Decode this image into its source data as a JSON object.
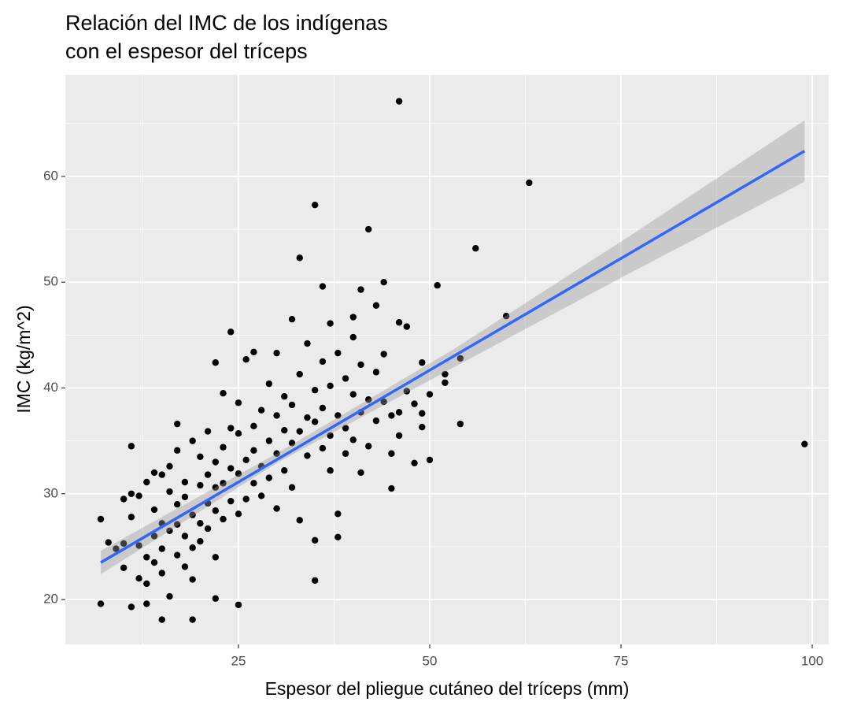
{
  "chart_data": {
    "type": "scatter",
    "title": [
      "Relación del IMC de los indígenas",
      "con el espesor del tríceps"
    ],
    "x_label": "Espesor del pliegue cutáneo del tríceps (mm)",
    "y_label": "IMC (kg/m^2)",
    "xlim": [
      2.37,
      102.16
    ],
    "ylim": [
      15.76,
      69.6
    ],
    "xticks": [
      25,
      50,
      75,
      100
    ],
    "yticks": [
      20,
      30,
      40,
      50,
      60
    ],
    "xminorticks": [
      12.5,
      37.5,
      62.5,
      87.5
    ],
    "yminorticks": [
      25,
      35,
      45,
      55,
      65
    ],
    "grid": true,
    "background": "#ebebeb",
    "point_color": "#000000",
    "points": {
      "x": [
        46,
        63,
        35,
        42,
        56,
        33,
        36,
        44,
        51,
        41,
        60,
        43,
        40,
        32,
        37,
        46,
        24,
        47,
        54,
        49,
        52,
        52,
        99,
        54,
        50,
        50,
        45,
        38,
        35,
        25,
        22,
        15,
        19,
        7,
        11,
        13,
        7,
        11,
        17,
        22,
        8,
        9,
        10,
        10,
        10,
        11,
        11,
        12,
        12,
        12,
        13,
        13,
        13,
        14,
        14,
        14,
        14,
        15,
        15,
        15,
        15,
        16,
        16,
        16,
        16,
        17,
        17,
        17,
        17,
        18,
        18,
        18,
        18,
        19,
        19,
        19,
        19,
        20,
        20,
        20,
        20,
        21,
        21,
        21,
        21,
        22,
        22,
        22,
        22,
        23,
        23,
        23,
        23,
        24,
        24,
        24,
        25,
        25,
        25,
        25,
        26,
        26,
        26,
        27,
        27,
        27,
        27,
        28,
        28,
        28,
        29,
        29,
        29,
        30,
        30,
        30,
        30,
        31,
        31,
        31,
        32,
        32,
        32,
        33,
        33,
        33,
        34,
        34,
        34,
        35,
        35,
        35,
        36,
        36,
        36,
        37,
        37,
        37,
        38,
        38,
        38,
        39,
        39,
        39,
        40,
        40,
        40,
        41,
        41,
        41,
        42,
        42,
        43,
        43,
        44,
        44,
        45,
        45,
        46,
        46,
        47,
        48,
        48,
        49,
        49
      ],
      "y": [
        67.1,
        59.4,
        57.3,
        55,
        53.2,
        52.3,
        49.6,
        50,
        49.7,
        49.3,
        46.8,
        47.8,
        46.7,
        46.5,
        46.1,
        46.2,
        45.3,
        45.8,
        42.8,
        42.4,
        41.3,
        40.5,
        34.7,
        36.6,
        39.4,
        33.2,
        30.5,
        25.9,
        21.8,
        19.5,
        20.1,
        18.1,
        18.1,
        19.6,
        19.3,
        19.6,
        27.6,
        34.5,
        36.6,
        42.4,
        25.4,
        24.8,
        25.3,
        29.5,
        23,
        30,
        27.8,
        25.1,
        29.8,
        22,
        31.1,
        24,
        21.5,
        26,
        28.5,
        32,
        23.5,
        31.8,
        27.2,
        24.8,
        22.5,
        30.2,
        26.5,
        32.6,
        20.3,
        29,
        27.1,
        24.2,
        34.1,
        29.7,
        26,
        23.1,
        31.1,
        28,
        35,
        24.9,
        21.9,
        30.8,
        27.2,
        33.5,
        25.5,
        31.8,
        29.1,
        35.9,
        26.7,
        33,
        28.4,
        30.6,
        24,
        34.4,
        27.6,
        39.5,
        31,
        29.3,
        36.2,
        32.4,
        35.7,
        28.1,
        38.6,
        31.9,
        33.2,
        29.5,
        42.7,
        36.4,
        31,
        34.1,
        43.4,
        32.6,
        37.9,
        29.8,
        35,
        40.4,
        31.5,
        33.8,
        37.4,
        28.6,
        43.3,
        36,
        32.2,
        39.2,
        34.8,
        38.4,
        30.6,
        35.9,
        41.3,
        27.5,
        37.2,
        33.6,
        44.2,
        36.8,
        25.6,
        39.8,
        38.1,
        34.3,
        42.5,
        40.2,
        35.5,
        32.2,
        37.4,
        43.3,
        28.1,
        36.2,
        40.9,
        33.8,
        39.4,
        44.8,
        35.1,
        37.7,
        32,
        42.2,
        38.9,
        34.5,
        36.9,
        41.5,
        38.7,
        43.2,
        33.8,
        37.4,
        37.7,
        35.5,
        39.7,
        38.5,
        32.9,
        36.3,
        37.6
      ]
    },
    "fit": {
      "color": "#3366ff",
      "band_color": "#999999",
      "x": [
        7,
        30,
        53,
        76,
        99
      ],
      "y": [
        23.5,
        33.22,
        42.95,
        52.67,
        62.4
      ],
      "lower": [
        22.4,
        32.9,
        41.9,
        50.8,
        59.5
      ],
      "upper": [
        24.6,
        33.8,
        43.6,
        54.3,
        65.3
      ]
    }
  }
}
